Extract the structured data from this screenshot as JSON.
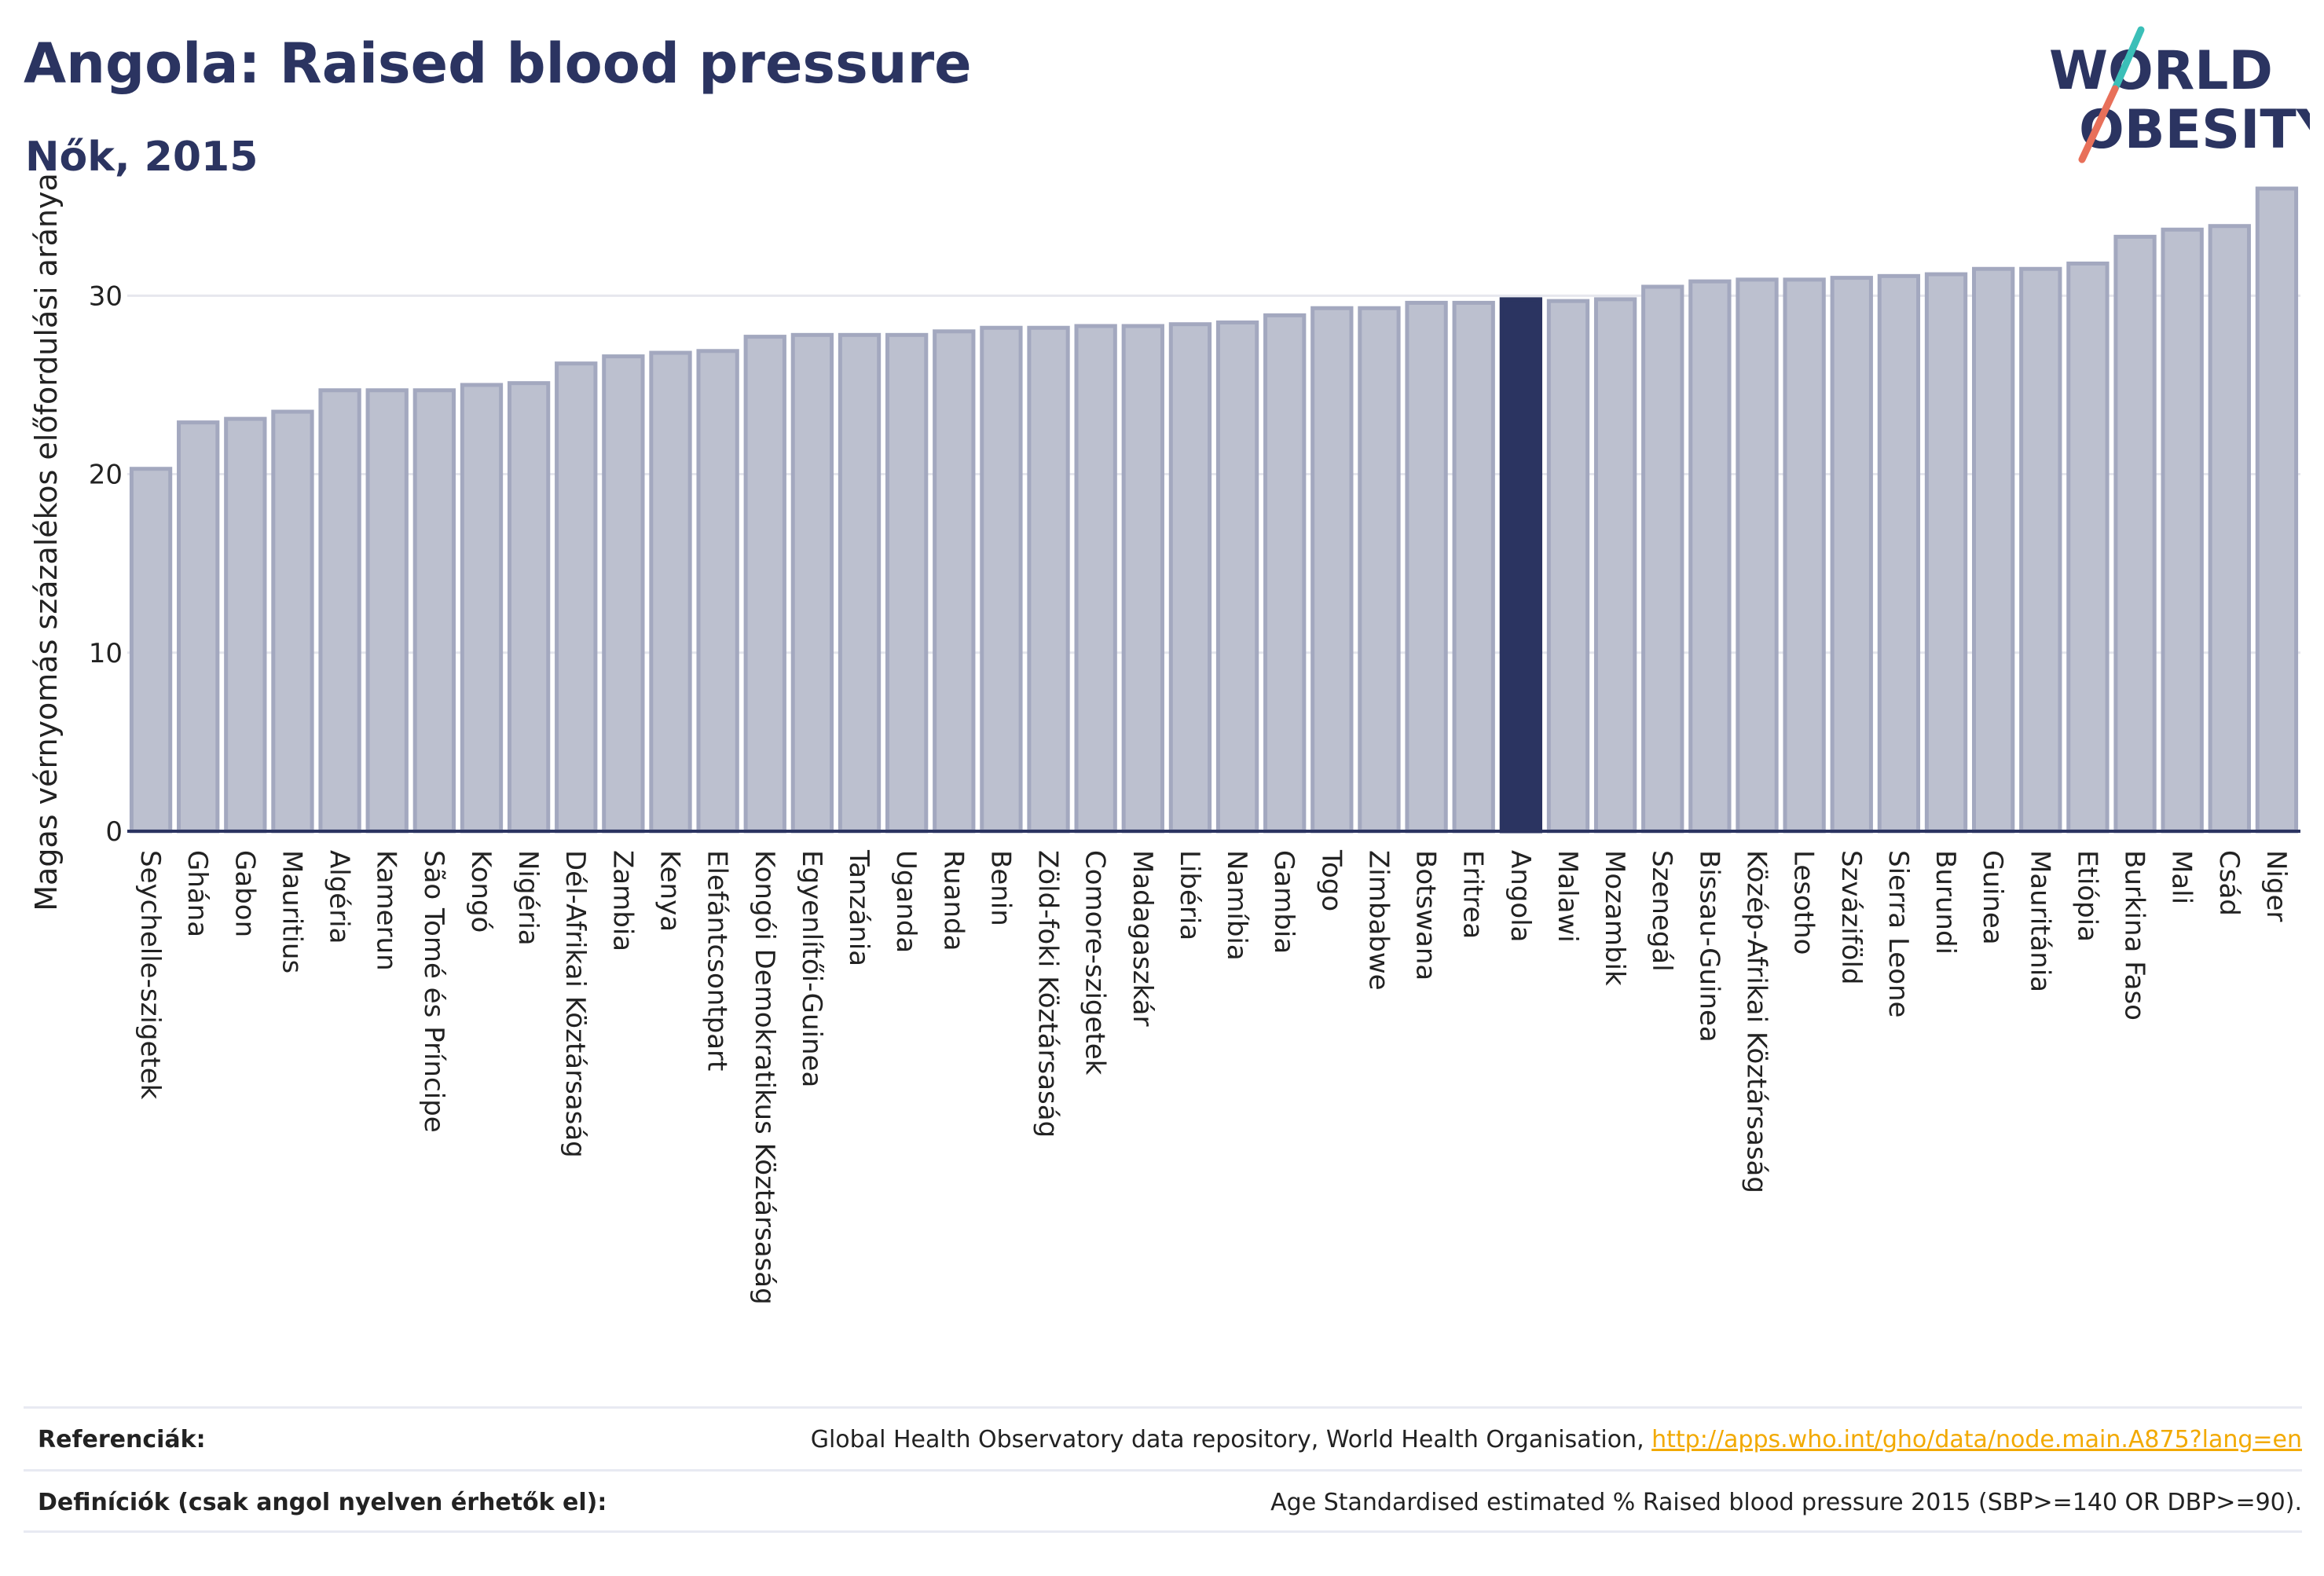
{
  "header": {
    "title": "Angola: Raised blood pressure",
    "subtitle": "Nők, 2015"
  },
  "logo": {
    "line1": "WORLD",
    "line2": "OBESITY",
    "colors": {
      "text": "#2b3461",
      "slash_top": "#3bbfb8",
      "slash_bottom": "#e8705a"
    }
  },
  "colors": {
    "bar_default": "#bcc0cf",
    "bar_default_stroke": "#a3a8bf",
    "bar_highlight": "#2b3461",
    "axis": "#2b3461",
    "grid": "#e6e7ee",
    "link": "#f2a900"
  },
  "chart_data": {
    "type": "bar",
    "title": "Angola: Raised blood pressure",
    "subtitle": "Nők, 2015",
    "xlabel": "",
    "ylabel": "Magas vérnyomás százalékos előfordulási aránya",
    "ylim": [
      0,
      36
    ],
    "yticks": [
      0,
      10,
      20,
      30
    ],
    "grid": true,
    "highlight": "Angola",
    "categories": [
      "Seychelle-szigetek",
      "Ghána",
      "Gabon",
      "Mauritius",
      "Algéria",
      "Kamerun",
      "São Tomé és Príncipe",
      "Kongó",
      "Nigéria",
      "Dél-Afrikai Köztársaság",
      "Zambia",
      "Kenya",
      "Elefántcsontpart",
      "Kongói Demokratikus Köztársaság",
      "Egyenlítői-Guinea",
      "Tanzánia",
      "Uganda",
      "Ruanda",
      "Benin",
      "Zöld-foki Köztársaság",
      "Comore-szigetek",
      "Madagaszkár",
      "Libéria",
      "Namíbia",
      "Gambia",
      "Togo",
      "Zimbabwe",
      "Botswana",
      "Eritrea",
      "Angola",
      "Malawi",
      "Mozambik",
      "Szenegál",
      "Bissau-Guinea",
      "Közép-Afrikai Köztársaság",
      "Lesotho",
      "Szváziföld",
      "Sierra Leone",
      "Burundi",
      "Guinea",
      "Mauritánia",
      "Etiópia",
      "Burkina Faso",
      "Mali",
      "Csád",
      "Niger"
    ],
    "values": [
      20.3,
      22.9,
      23.1,
      23.5,
      24.7,
      24.7,
      24.7,
      25.0,
      25.1,
      26.2,
      26.6,
      26.8,
      26.9,
      27.7,
      27.8,
      27.8,
      27.8,
      28.0,
      28.2,
      28.2,
      28.3,
      28.3,
      28.4,
      28.5,
      28.9,
      29.3,
      29.3,
      29.6,
      29.6,
      29.8,
      29.7,
      29.8,
      30.5,
      30.8,
      30.9,
      30.9,
      31.0,
      31.1,
      31.2,
      31.5,
      31.5,
      31.8,
      33.3,
      33.7,
      33.9,
      36.0
    ]
  },
  "footer": {
    "references_label": "Referenciák:",
    "references_text": "Global Health Observatory data repository, World Health Organisation, ",
    "references_link": "http://apps.who.int/gho/data/node.main.A875?lang=en",
    "definitions_label": "Definíciók (csak angol nyelven érhetők el):",
    "definitions_text": "Age Standardised estimated % Raised blood pressure 2015 (SBP>=140 OR DBP>=90)."
  }
}
